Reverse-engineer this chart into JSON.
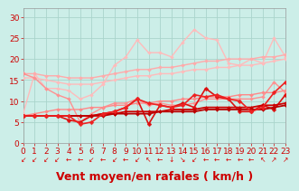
{
  "xlabel": "Vent moyen/en rafales ( km/h )",
  "xlim": [
    0,
    23
  ],
  "ylim": [
    0,
    32
  ],
  "yticks": [
    0,
    5,
    10,
    15,
    20,
    25,
    30
  ],
  "xticks": [
    0,
    1,
    2,
    3,
    4,
    5,
    6,
    7,
    8,
    9,
    10,
    11,
    12,
    13,
    14,
    15,
    16,
    17,
    18,
    19,
    20,
    21,
    22,
    23
  ],
  "bg_color": "#cceee8",
  "grid_color": "#aad4cc",
  "lines": [
    {
      "comment": "light pink jagged - rafales top line",
      "y": [
        7.0,
        16.5,
        13.0,
        13.0,
        12.5,
        10.5,
        11.5,
        14.0,
        18.5,
        20.5,
        24.5,
        21.5,
        21.5,
        20.5,
        24.0,
        27.0,
        25.0,
        24.5,
        19.0,
        18.5,
        20.0,
        19.0,
        25.0,
        20.5
      ],
      "color": "#ffbbbb",
      "lw": 1.0,
      "marker": "D",
      "ms": 2.0
    },
    {
      "comment": "light pink linear trend 1 - top straight line",
      "y": [
        16.5,
        16.5,
        16.0,
        16.0,
        15.5,
        15.5,
        15.5,
        16.0,
        16.5,
        17.0,
        17.5,
        17.5,
        18.0,
        18.0,
        18.5,
        19.0,
        19.5,
        19.5,
        20.0,
        20.0,
        20.0,
        20.5,
        20.5,
        21.0
      ],
      "color": "#ffaaaa",
      "lw": 1.0,
      "marker": "D",
      "ms": 2.0
    },
    {
      "comment": "light pink linear trend 2",
      "y": [
        15.5,
        15.5,
        15.0,
        14.5,
        14.0,
        14.0,
        14.0,
        14.5,
        15.0,
        15.5,
        16.0,
        16.0,
        16.5,
        16.5,
        17.0,
        17.5,
        17.5,
        18.0,
        18.0,
        18.5,
        18.5,
        19.0,
        19.5,
        20.0
      ],
      "color": "#ffbbbb",
      "lw": 1.0,
      "marker": "D",
      "ms": 2.0
    },
    {
      "comment": "medium pink descend then rise",
      "y": [
        16.5,
        15.5,
        13.0,
        11.5,
        10.5,
        5.0,
        7.0,
        8.5,
        9.5,
        9.5,
        10.5,
        9.0,
        9.5,
        9.0,
        9.0,
        9.5,
        10.5,
        10.5,
        10.5,
        10.5,
        10.5,
        11.0,
        14.5,
        12.0
      ],
      "color": "#ff9090",
      "lw": 1.0,
      "marker": "D",
      "ms": 2.0
    },
    {
      "comment": "medium pink linear trend 3 - lower",
      "y": [
        6.5,
        7.0,
        7.5,
        8.0,
        8.0,
        8.0,
        8.5,
        8.5,
        9.0,
        9.0,
        9.5,
        9.5,
        10.0,
        10.0,
        10.5,
        10.5,
        11.0,
        11.0,
        11.0,
        11.5,
        11.5,
        12.0,
        12.0,
        12.5
      ],
      "color": "#ff8888",
      "lw": 1.0,
      "marker": "D",
      "ms": 2.0
    },
    {
      "comment": "red jagged volatile - medium",
      "y": [
        6.5,
        6.5,
        6.5,
        6.5,
        5.5,
        5.0,
        6.5,
        7.0,
        7.5,
        8.5,
        10.5,
        4.5,
        9.0,
        8.5,
        9.5,
        8.5,
        13.0,
        11.0,
        10.5,
        7.5,
        7.5,
        9.0,
        8.0,
        11.5
      ],
      "color": "#dd1111",
      "lw": 1.2,
      "marker": "D",
      "ms": 2.5
    },
    {
      "comment": "dark red linear bottom trend 1",
      "y": [
        6.5,
        6.5,
        6.5,
        6.5,
        6.5,
        6.5,
        6.5,
        7.0,
        7.0,
        7.5,
        7.5,
        7.5,
        7.5,
        8.0,
        8.0,
        8.0,
        8.5,
        8.5,
        8.5,
        8.5,
        8.5,
        9.0,
        9.0,
        9.5
      ],
      "color": "#cc0000",
      "lw": 1.3,
      "marker": "D",
      "ms": 2.0
    },
    {
      "comment": "dark red linear bottom trend 2 - almost flat",
      "y": [
        6.5,
        6.5,
        6.5,
        6.5,
        6.5,
        6.5,
        6.5,
        6.5,
        7.0,
        7.0,
        7.0,
        7.0,
        7.5,
        7.5,
        7.5,
        7.5,
        8.0,
        8.0,
        8.0,
        8.0,
        8.0,
        8.0,
        8.5,
        9.0
      ],
      "color": "#bb0000",
      "lw": 1.3,
      "marker": "D",
      "ms": 2.0
    },
    {
      "comment": "red jagged volatile lower - with big dip at 11",
      "y": [
        6.5,
        6.5,
        6.5,
        6.5,
        6.5,
        4.5,
        5.0,
        7.0,
        7.5,
        8.5,
        10.5,
        9.5,
        9.0,
        8.5,
        9.0,
        11.5,
        11.0,
        11.5,
        10.5,
        10.0,
        7.5,
        8.5,
        12.0,
        14.5
      ],
      "color": "#ee2222",
      "lw": 1.2,
      "marker": "D",
      "ms": 2.5
    }
  ],
  "wind_dirs": [
    "↙",
    "↙",
    "↙",
    "↙",
    "←",
    "←",
    "↙",
    "←",
    "↙",
    "←",
    "↙",
    "↖",
    "←",
    "↓",
    "↘",
    "↙",
    "←",
    "←",
    "←",
    "←",
    "←",
    "↖",
    "↗",
    "↗"
  ],
  "arrow_color": "#dd0000",
  "xlabel_color": "#cc0000",
  "tick_color": "#cc0000",
  "tick_fontsize": 6.5,
  "xlabel_fontsize": 9
}
